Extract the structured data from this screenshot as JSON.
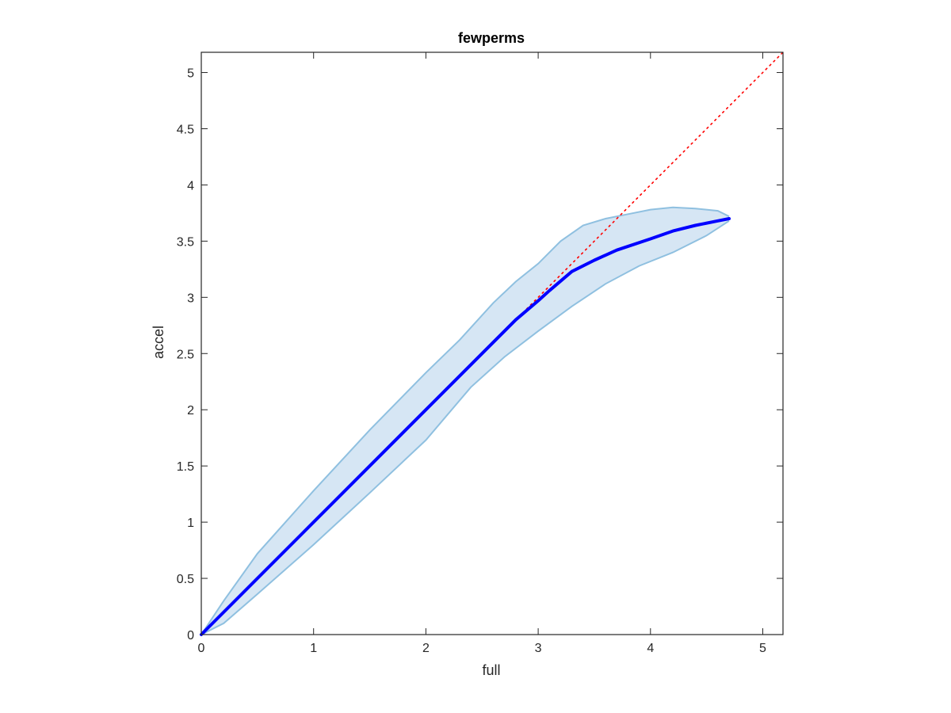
{
  "chart_data": {
    "type": "line",
    "title": "fewperms",
    "xlabel": "full",
    "ylabel": "accel",
    "xlim": [
      0,
      5.18
    ],
    "ylim": [
      0,
      5.18
    ],
    "xticks": [
      0,
      1,
      2,
      3,
      4,
      5
    ],
    "yticks": [
      0,
      0.5,
      1,
      1.5,
      2,
      2.5,
      3,
      3.5,
      4,
      4.5,
      5
    ],
    "xtick_labels": [
      "0",
      "1",
      "2",
      "3",
      "4",
      "5"
    ],
    "ytick_labels": [
      "0",
      "0.5",
      "1",
      "1.5",
      "2",
      "2.5",
      "3",
      "3.5",
      "4",
      "4.5",
      "5"
    ],
    "grid": false,
    "box": true,
    "colors": {
      "mean_line": "#0000ff",
      "band_fill": "#d6e6f4",
      "band_edge": "#8fc0e0",
      "reference_line": "#ff0000"
    },
    "series": [
      {
        "role": "mean",
        "style": "solid",
        "x": [
          0,
          0.5,
          1,
          1.5,
          2,
          2.5,
          2.8,
          3.0,
          3.1,
          3.3,
          3.5,
          3.7,
          4.0,
          4.2,
          4.4,
          4.6,
          4.7
        ],
        "y": [
          0,
          0.5,
          1,
          1.5,
          2,
          2.5,
          2.8,
          2.97,
          3.06,
          3.23,
          3.33,
          3.42,
          3.52,
          3.59,
          3.64,
          3.68,
          3.7
        ]
      },
      {
        "role": "band-upper",
        "x": [
          0,
          0.2,
          0.5,
          1,
          1.5,
          2,
          2.3,
          2.6,
          2.8,
          3.0,
          3.2,
          3.4,
          3.6,
          3.8,
          4.0,
          4.2,
          4.4,
          4.6,
          4.7
        ],
        "y": [
          0,
          0.3,
          0.72,
          1.28,
          1.82,
          2.33,
          2.62,
          2.95,
          3.14,
          3.3,
          3.5,
          3.64,
          3.7,
          3.74,
          3.78,
          3.8,
          3.79,
          3.77,
          3.72
        ]
      },
      {
        "role": "band-lower",
        "x": [
          0,
          0.2,
          0.5,
          1,
          1.5,
          2,
          2.4,
          2.7,
          3.0,
          3.3,
          3.6,
          3.9,
          4.2,
          4.5,
          4.7
        ],
        "y": [
          0,
          0.1,
          0.36,
          0.8,
          1.26,
          1.73,
          2.2,
          2.47,
          2.7,
          2.92,
          3.12,
          3.28,
          3.4,
          3.55,
          3.68
        ]
      },
      {
        "role": "reference",
        "style": "dotted",
        "x": [
          0,
          5.18
        ],
        "y": [
          0,
          5.18
        ]
      }
    ]
  }
}
